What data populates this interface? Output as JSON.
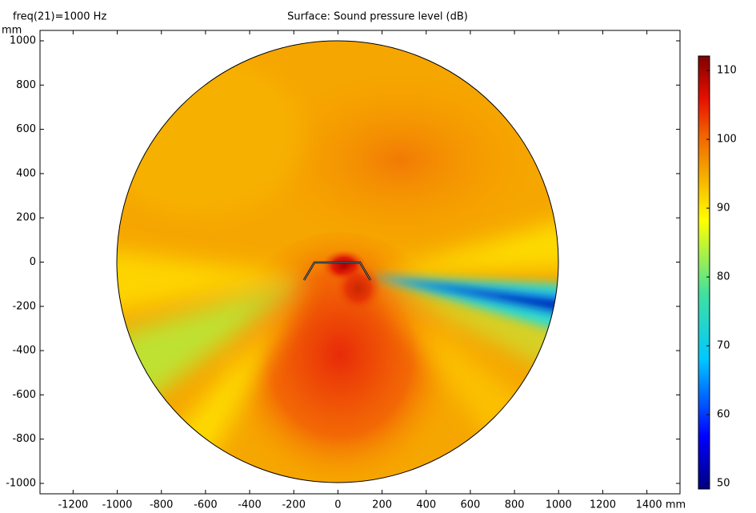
{
  "chart_data": {
    "type": "surface",
    "corner_label": "freq(21)=1000 Hz",
    "title": "Surface: Sound pressure level (dB)",
    "ylabel": "mm",
    "xlim": [
      -1350,
      1550
    ],
    "ylim": [
      -1047,
      1047
    ],
    "xticks": [
      -1200,
      -1000,
      -800,
      -600,
      -400,
      -200,
      0,
      200,
      400,
      600,
      800,
      1000,
      1200,
      {
        "value": 1400,
        "label": "1400 mm"
      }
    ],
    "yticks": [
      -1000,
      -800,
      -600,
      -400,
      -200,
      0,
      200,
      400,
      600,
      800,
      1000
    ],
    "clim": [
      49.2,
      112.1
    ],
    "cticks": [
      50,
      60,
      70,
      80,
      90,
      100,
      110
    ]
  }
}
